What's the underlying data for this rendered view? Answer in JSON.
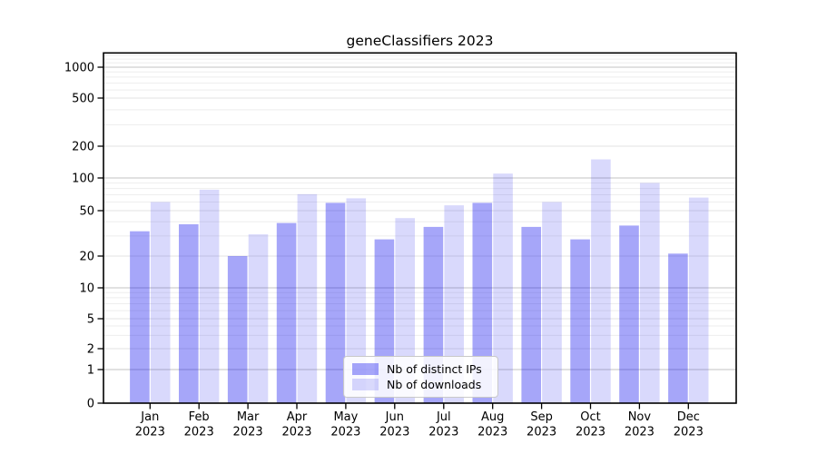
{
  "chart_data": {
    "type": "bar",
    "title": "geneClassifiers 2023",
    "yscale": "symlog",
    "grid": true,
    "legend_position": "lower center",
    "yticks": [
      0,
      1,
      2,
      5,
      10,
      20,
      50,
      100,
      200,
      500,
      1000
    ],
    "ylim": [
      0,
      1300
    ],
    "base_color": "#0000ee",
    "categories": [
      {
        "month": "Jan",
        "year": "2023"
      },
      {
        "month": "Feb",
        "year": "2023"
      },
      {
        "month": "Mar",
        "year": "2023"
      },
      {
        "month": "Apr",
        "year": "2023"
      },
      {
        "month": "May",
        "year": "2023"
      },
      {
        "month": "Jun",
        "year": "2023"
      },
      {
        "month": "Jul",
        "year": "2023"
      },
      {
        "month": "Aug",
        "year": "2023"
      },
      {
        "month": "Sep",
        "year": "2023"
      },
      {
        "month": "Oct",
        "year": "2023"
      },
      {
        "month": "Nov",
        "year": "2023"
      },
      {
        "month": "Dec",
        "year": "2023"
      }
    ],
    "series": [
      {
        "name": "Nb of distinct IPs",
        "color": "rgba(0,0,238,0.35)",
        "values": [
          33,
          38,
          20,
          39,
          59,
          28,
          36,
          59,
          36,
          28,
          37,
          21
        ]
      },
      {
        "name": "Nb of downloads",
        "color": "rgba(0,0,238,0.15)",
        "values": [
          60,
          78,
          31,
          71,
          65,
          43,
          56,
          110,
          60,
          150,
          90,
          66
        ]
      }
    ]
  }
}
